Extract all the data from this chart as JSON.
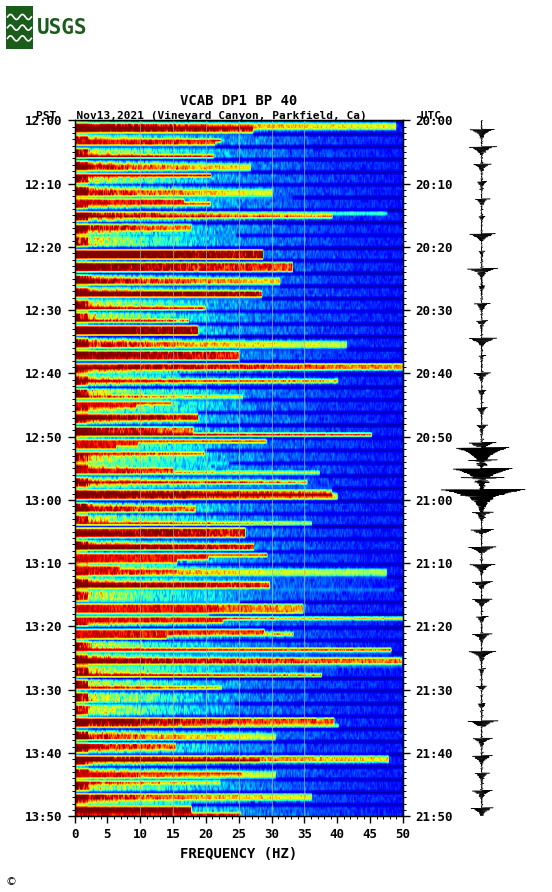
{
  "title_line1": "VCAB DP1 BP 40",
  "title_line2": "PST   Nov13,2021 (Vineyard Canyon, Parkfield, Ca)        UTC",
  "xlabel": "FREQUENCY (HZ)",
  "freq_min": 0,
  "freq_max": 50,
  "ytick_pst": [
    "12:00",
    "12:10",
    "12:20",
    "12:30",
    "12:40",
    "12:50",
    "13:00",
    "13:10",
    "13:20",
    "13:30",
    "13:40",
    "13:50"
  ],
  "ytick_utc": [
    "20:00",
    "20:10",
    "20:20",
    "20:30",
    "20:40",
    "20:50",
    "21:00",
    "21:10",
    "21:20",
    "21:30",
    "21:40",
    "21:50"
  ],
  "xticks": [
    0,
    5,
    10,
    15,
    20,
    25,
    30,
    35,
    40,
    45,
    50
  ],
  "n_time": 220,
  "n_freq": 500,
  "background_color": "#ffffff",
  "seed": 42,
  "figwidth": 5.52,
  "figheight": 8.92,
  "usgs_color": "#1a5c1a",
  "vgrid_freqs": [
    10,
    15,
    20,
    25,
    30,
    35
  ],
  "vgrid_color": "#aaaaaa",
  "vgrid_lw": 0.6
}
